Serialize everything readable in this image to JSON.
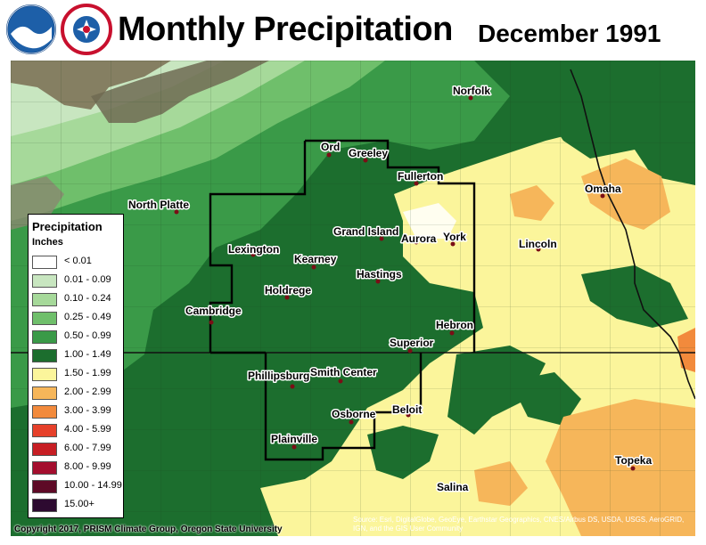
{
  "header": {
    "title": "Monthly Precipitation",
    "period": "December 1991",
    "logos": [
      "noaa-logo",
      "national-weather-service-logo"
    ]
  },
  "legend": {
    "title": "Precipitation",
    "units": "Inches",
    "items": [
      {
        "label": "< 0.01",
        "color": "#ffffff"
      },
      {
        "label": "0.01 - 0.09",
        "color": "#c8e6c0"
      },
      {
        "label": "0.10 - 0.24",
        "color": "#a6d99a"
      },
      {
        "label": "0.25 - 0.49",
        "color": "#6fbf6b"
      },
      {
        "label": "0.50 - 0.99",
        "color": "#3a9a48"
      },
      {
        "label": "1.00 - 1.49",
        "color": "#1c6e2e"
      },
      {
        "label": "1.50 - 1.99",
        "color": "#fbf59b"
      },
      {
        "label": "2.00 - 2.99",
        "color": "#f6b65a"
      },
      {
        "label": "3.00 - 3.99",
        "color": "#f28a3c"
      },
      {
        "label": "4.00 - 5.99",
        "color": "#e6402a"
      },
      {
        "label": "6.00 - 7.99",
        "color": "#c71e24"
      },
      {
        "label": "8.00 - 9.99",
        "color": "#a40e2e"
      },
      {
        "label": "10.00 - 14.99",
        "color": "#5e0a26"
      },
      {
        "label": "15.00+",
        "color": "#2d0a30"
      }
    ]
  },
  "cities": [
    {
      "name": "Norfolk"
    },
    {
      "name": "Ord"
    },
    {
      "name": "Greeley"
    },
    {
      "name": "Fullerton"
    },
    {
      "name": "North Platte"
    },
    {
      "name": "Omaha"
    },
    {
      "name": "Grand Island"
    },
    {
      "name": "Aurora"
    },
    {
      "name": "York"
    },
    {
      "name": "Lincoln"
    },
    {
      "name": "Lexington"
    },
    {
      "name": "Kearney"
    },
    {
      "name": "Hastings"
    },
    {
      "name": "Holdrege"
    },
    {
      "name": "Cambridge"
    },
    {
      "name": "Hebron"
    },
    {
      "name": "Superior"
    },
    {
      "name": "Phillipsburg"
    },
    {
      "name": "Smith Center"
    },
    {
      "name": "Beloit"
    },
    {
      "name": "Osborne"
    },
    {
      "name": "Plainville"
    },
    {
      "name": "Topeka"
    },
    {
      "name": "Salina"
    }
  ],
  "footer": {
    "credit": "Copyright 2017, PRISM Climate Group, Oregon State University",
    "sources": "Source: Esri, DigitalGlobe, GeoEye, Earthstar Geographics, CNES/Airbus DS, USDA, USGS, AeroGRID, IGN, and the GIS User Community"
  }
}
